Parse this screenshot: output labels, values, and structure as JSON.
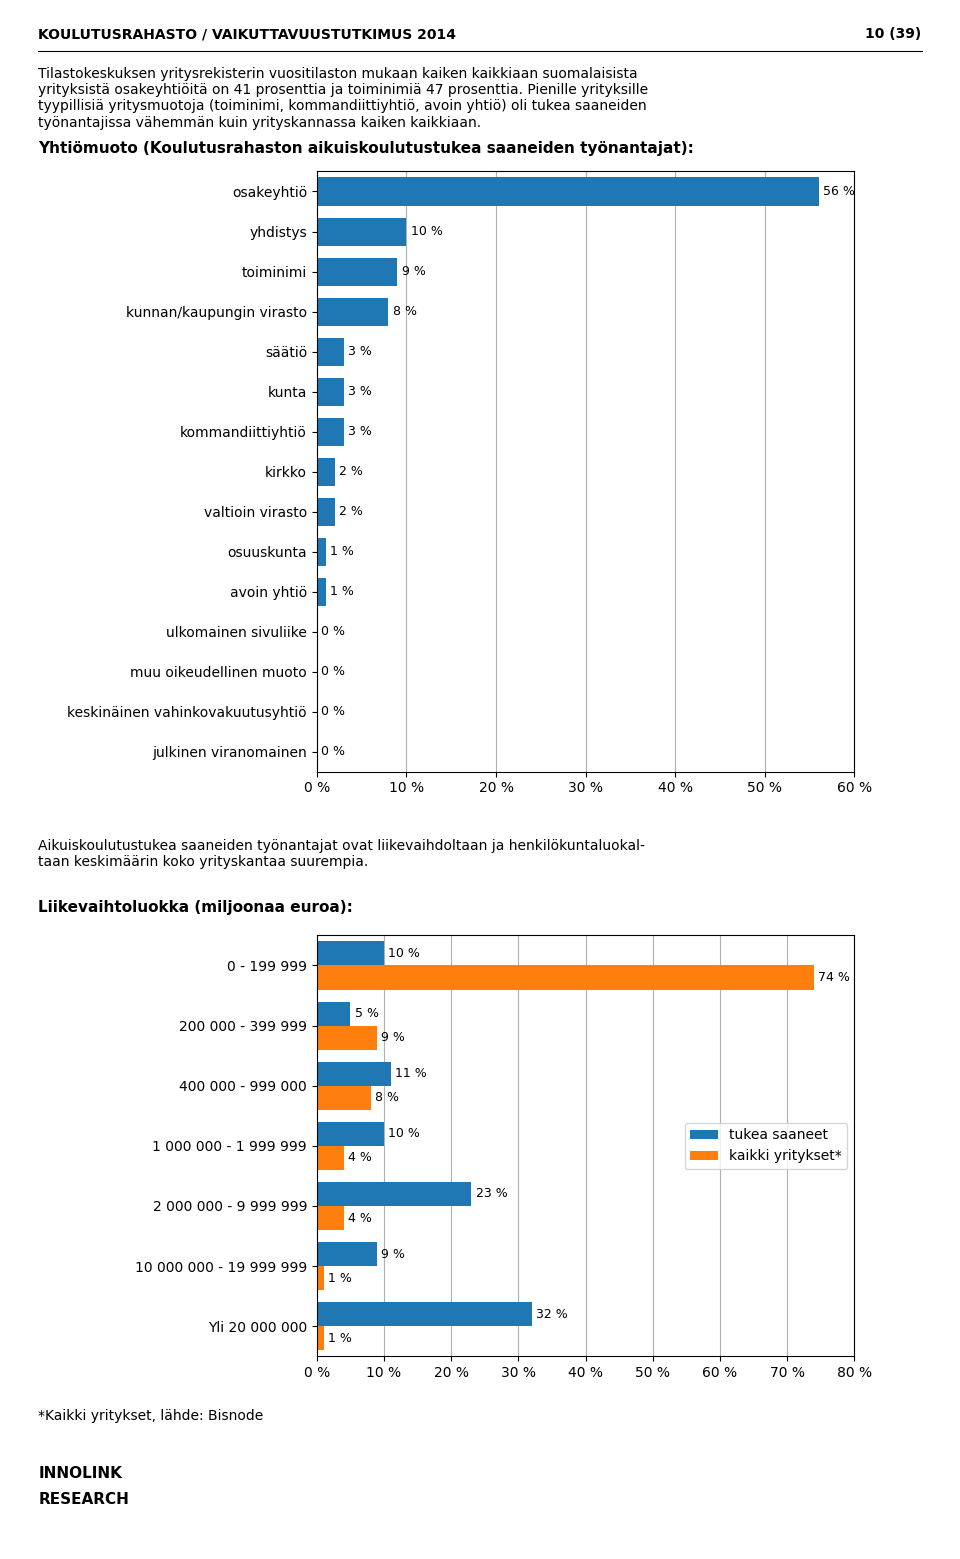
{
  "annotations": [
    "KOULUTUSRAHASTO / VAIKUTTAVUUSTUTKIMUS 2014",
    "10 (39)",
    "INNOLINK",
    "RESEARCH"
  ],
  "chart_data": [
    {
      "type": "bar",
      "orientation": "horizontal",
      "annotations": [
        "Tilastokeskuksen yritysrekisterin vuositilaston mukaan kaiken kaikkiaan suomalaisista\nyrityksistä osakeyhtiöitä on 41 prosenttia ja toiminimiä 47 prosenttia. Pienille yrityksille\ntyypillisiä yritysmuotoja (toiminimi, kommandiittiyhtiö, avoin yhtiö) oli tukea saaneiden\ntyönantajissa vähemmän kuin yrityskannassa kaiken kaikkiaan."
      ],
      "title": "Yhtiömuoto (Koulutusrahaston aikuiskoulutustukea saaneiden työnantajat):",
      "categories": [
        "osakeyhtiö",
        "yhdistys",
        "toiminimi",
        "kunnan/kaupungin virasto",
        "säätiö",
        "kunta",
        "kommandiittiyhtiö",
        "kirkko",
        "valtioin virasto",
        "osuuskunta",
        "avoin yhtiö",
        "ulkomainen sivuliike",
        "muu oikeudellinen muoto",
        "keskinäinen vahinkovakuutusyhtiö",
        "julkinen viranomainen"
      ],
      "values": [
        56,
        10,
        9,
        8,
        3,
        3,
        3,
        2,
        2,
        1,
        1,
        0,
        0,
        0,
        0
      ],
      "value_labels": [
        "56 %",
        "10 %",
        "9 %",
        "8 %",
        "3 %",
        "3 %",
        "3 %",
        "2 %",
        "2 %",
        "1 %",
        "1 %",
        "0 %",
        "0 %",
        "0 %",
        "0 %"
      ],
      "data_labels": true,
      "xlim": [
        0,
        60
      ],
      "xticks": [
        {
          "value": 0,
          "label": "0 %"
        },
        {
          "value": 10,
          "label": "10 %"
        },
        {
          "value": 20,
          "label": "20 %"
        },
        {
          "value": 30,
          "label": "30 %"
        },
        {
          "value": 40,
          "label": "40 %"
        },
        {
          "value": 50,
          "label": "50 %"
        },
        {
          "value": 60,
          "label": "60 %"
        }
      ],
      "grid": true
    },
    {
      "type": "bar",
      "orientation": "horizontal",
      "annotations": [
        "Aikuiskoulutustukea saaneiden työnantajat ovat liikevaihdoltaan ja henkilökuntaluokal-\ntaan keskimäärin koko yrityskantaa suurempia.",
        "*Kaikki yritykset, lähde: Bisnode"
      ],
      "title": "Liikevaihtoluokka (miljoonaa euroa):",
      "categories": [
        "0 - 199 999",
        "200 000 - 399 999",
        "400 000 - 999 000",
        "1 000 000 - 1 999 999",
        "2 000 000 - 9 999 999",
        "10 000 000 - 19 999 999",
        "Yli 20 000 000"
      ],
      "series": [
        {
          "name": "tukea saaneet",
          "values": [
            10,
            5,
            11,
            10,
            23,
            9,
            32
          ],
          "value_labels": [
            "10 %",
            "5 %",
            "11 %",
            "10 %",
            "23 %",
            "9 %",
            "32 %"
          ]
        },
        {
          "name": "kaikki yritykset*",
          "values": [
            74,
            9,
            8,
            4,
            4,
            1,
            1
          ],
          "value_labels": [
            "74 %",
            "9 %",
            "8 %",
            "4 %",
            "4 %",
            "1 %",
            "1 %"
          ]
        }
      ],
      "data_labels": true,
      "xlim": [
        0,
        80
      ],
      "xticks": [
        {
          "value": 0,
          "label": "0 %"
        },
        {
          "value": 10,
          "label": "10 %"
        },
        {
          "value": 20,
          "label": "20 %"
        },
        {
          "value": 30,
          "label": "30 %"
        },
        {
          "value": 40,
          "label": "40 %"
        },
        {
          "value": 50,
          "label": "50 %"
        },
        {
          "value": 60,
          "label": "60 %"
        },
        {
          "value": 70,
          "label": "70 %"
        },
        {
          "value": 80,
          "label": "80 %"
        }
      ],
      "grid": true,
      "legend": "center right"
    }
  ]
}
